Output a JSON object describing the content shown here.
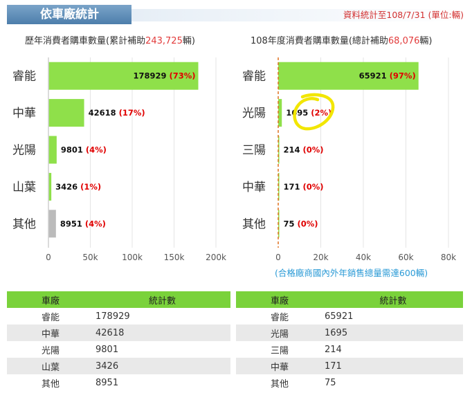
{
  "header": {
    "title": "依車廠統計",
    "note": "資料統計至108/7/31 (單位:輛)"
  },
  "colors": {
    "bar": "#8fe04a",
    "bar_other": "#bbbbbb",
    "percent": "#e00000",
    "table_header": "#7ad23b",
    "zero_line": "#e07020"
  },
  "left_title": {
    "prefix": "歷年消費者購車數量(累計補助",
    "total": "243,725",
    "suffix": "輛)"
  },
  "right_title": {
    "prefix": "108年度消費者購車數量(總計補助",
    "total": "68,076",
    "suffix": "輛)"
  },
  "chart_data": [
    {
      "type": "bar",
      "orientation": "horizontal",
      "categories": [
        "睿能",
        "中華",
        "光陽",
        "山葉",
        "其他"
      ],
      "values": [
        178929,
        42618,
        9801,
        3426,
        8951
      ],
      "percent_labels": [
        "(73%)",
        "(17%)",
        "(4%)",
        "(1%)",
        "(4%)"
      ],
      "xlim": [
        0,
        200000
      ],
      "xticks": [
        "0",
        "50k",
        "100k",
        "150k",
        "200k"
      ],
      "grid": true,
      "legend": "none"
    },
    {
      "type": "bar",
      "orientation": "horizontal",
      "categories": [
        "睿能",
        "光陽",
        "三陽",
        "中華",
        "其他"
      ],
      "values": [
        65921,
        1695,
        214,
        171,
        75
      ],
      "percent_labels": [
        "(97%)",
        "(2%)",
        "(0%)",
        "(0%)",
        "(0%)"
      ],
      "xlim": [
        0,
        80000
      ],
      "xticks": [
        "0",
        "20k",
        "40k",
        "60k",
        "80k"
      ],
      "grid": true,
      "legend": "none"
    }
  ],
  "footnote": "(合格廠商國內外年銷售總量需達600輛)",
  "tables": [
    {
      "headers": [
        "車廠",
        "統計數"
      ],
      "rows": [
        [
          "睿能",
          "178929"
        ],
        [
          "中華",
          "42618"
        ],
        [
          "光陽",
          "9801"
        ],
        [
          "山葉",
          "3426"
        ],
        [
          "其他",
          "8951"
        ]
      ]
    },
    {
      "headers": [
        "車廠",
        "統計數"
      ],
      "rows": [
        [
          "睿能",
          "65921"
        ],
        [
          "光陽",
          "1695"
        ],
        [
          "三陽",
          "214"
        ],
        [
          "中華",
          "171"
        ],
        [
          "其他",
          "75"
        ]
      ]
    }
  ]
}
